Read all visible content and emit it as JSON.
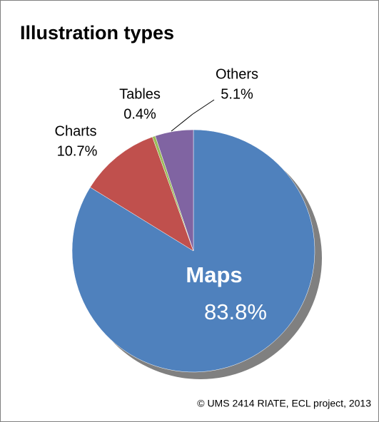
{
  "chart_data": {
    "type": "pie",
    "title": "Illustration types",
    "categories": [
      "Maps",
      "Charts",
      "Tables",
      "Others"
    ],
    "values": [
      83.8,
      10.7,
      0.4,
      5.1
    ],
    "value_labels": [
      "83.8%",
      "10.7%",
      "0.4%",
      "5.1%"
    ],
    "colors": [
      "#4f81bd",
      "#c0504d",
      "#9bbb59",
      "#8064a2"
    ],
    "credit": "© UMS 2414 RIATE, ECL project, 2013"
  }
}
